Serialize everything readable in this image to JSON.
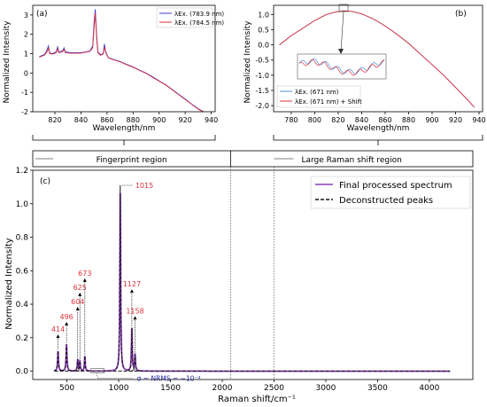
{
  "chart_data": [
    {
      "id": "a",
      "panel_label": "(a)",
      "type": "line",
      "xlabel": "Wavelength/nm",
      "ylabel": "Normalized Intensity",
      "xlim": [
        803,
        943
      ],
      "ylim": [
        -2,
        3.5
      ],
      "x_ticks": [
        820,
        840,
        860,
        880,
        900,
        920,
        940
      ],
      "y_ticks": [
        -2,
        -1,
        0,
        1,
        2,
        3
      ],
      "legend_position": "top-right",
      "series": [
        {
          "name": "λEx. (783.9 nm)",
          "color": "#3b3bd6",
          "points": [
            [
              808,
              0.85
            ],
            [
              812,
              0.95
            ],
            [
              814,
              1.2
            ],
            [
              815,
              1.4
            ],
            [
              816,
              1.05
            ],
            [
              818,
              1.0
            ],
            [
              821,
              1.1
            ],
            [
              822,
              1.35
            ],
            [
              823,
              1.1
            ],
            [
              826,
              1.15
            ],
            [
              827,
              1.3
            ],
            [
              828,
              1.1
            ],
            [
              832,
              1.05
            ],
            [
              836,
              1.05
            ],
            [
              840,
              1.05
            ],
            [
              844,
              1.1
            ],
            [
              847,
              1.15
            ],
            [
              849,
              1.4
            ],
            [
              850,
              2.6
            ],
            [
              851,
              3.3
            ],
            [
              852,
              2.0
            ],
            [
              853,
              1.1
            ],
            [
              855,
              0.95
            ],
            [
              857,
              1.0
            ],
            [
              858,
              1.5
            ],
            [
              859,
              1.1
            ],
            [
              861,
              0.8
            ],
            [
              865,
              0.7
            ],
            [
              870,
              0.6
            ],
            [
              875,
              0.45
            ],
            [
              880,
              0.32
            ],
            [
              885,
              0.15
            ],
            [
              890,
              0.0
            ],
            [
              895,
              -0.2
            ],
            [
              900,
              -0.4
            ],
            [
              905,
              -0.6
            ],
            [
              910,
              -0.85
            ],
            [
              915,
              -1.1
            ],
            [
              920,
              -1.35
            ],
            [
              925,
              -1.6
            ],
            [
              930,
              -1.85
            ],
            [
              934,
              -2.0
            ]
          ]
        },
        {
          "name": "λEx. (784.5 nm)",
          "color": "#e0303a",
          "points": [
            [
              808,
              0.82
            ],
            [
              812,
              0.92
            ],
            [
              814,
              1.1
            ],
            [
              815,
              1.3
            ],
            [
              816,
              1.0
            ],
            [
              818,
              0.98
            ],
            [
              821,
              1.05
            ],
            [
              822,
              1.25
            ],
            [
              823,
              1.05
            ],
            [
              826,
              1.1
            ],
            [
              827,
              1.22
            ],
            [
              828,
              1.05
            ],
            [
              832,
              1.02
            ],
            [
              836,
              1.02
            ],
            [
              840,
              1.03
            ],
            [
              844,
              1.08
            ],
            [
              847,
              1.12
            ],
            [
              849,
              1.3
            ],
            [
              850,
              2.3
            ],
            [
              851,
              3.1
            ],
            [
              852,
              1.8
            ],
            [
              853,
              1.05
            ],
            [
              855,
              0.92
            ],
            [
              857,
              0.98
            ],
            [
              858,
              1.35
            ],
            [
              859,
              1.05
            ],
            [
              861,
              0.78
            ],
            [
              865,
              0.68
            ],
            [
              870,
              0.58
            ],
            [
              875,
              0.43
            ],
            [
              880,
              0.3
            ],
            [
              885,
              0.13
            ],
            [
              890,
              -0.02
            ],
            [
              895,
              -0.22
            ],
            [
              900,
              -0.42
            ],
            [
              905,
              -0.62
            ],
            [
              910,
              -0.87
            ],
            [
              915,
              -1.12
            ],
            [
              920,
              -1.37
            ],
            [
              925,
              -1.62
            ],
            [
              930,
              -1.87
            ],
            [
              934,
              -2.02
            ]
          ]
        }
      ]
    },
    {
      "id": "b",
      "panel_label": "(b)",
      "type": "line",
      "xlabel": "Wavelength/nm",
      "ylabel": "Normalized Intensity",
      "xlim": [
        765,
        943
      ],
      "ylim": [
        -2.2,
        1.3
      ],
      "x_ticks": [
        780,
        800,
        820,
        840,
        860,
        880,
        900,
        920,
        940
      ],
      "y_ticks": [
        -2.0,
        -1.5,
        -1.0,
        -0.5,
        0.0,
        0.5,
        1.0
      ],
      "legend_position": "bottom-left",
      "series": [
        {
          "name": "λEx. (671 nm)",
          "color": "#4a90d9",
          "points": [
            [
              770,
              0.0
            ],
            [
              780,
              0.3
            ],
            [
              790,
              0.55
            ],
            [
              800,
              0.8
            ],
            [
              810,
              1.0
            ],
            [
              818,
              1.08
            ],
            [
              825,
              1.12
            ],
            [
              832,
              1.1
            ],
            [
              840,
              1.02
            ],
            [
              850,
              0.85
            ],
            [
              860,
              0.62
            ],
            [
              870,
              0.35
            ],
            [
              880,
              0.05
            ],
            [
              890,
              -0.3
            ],
            [
              900,
              -0.65
            ],
            [
              910,
              -1.0
            ],
            [
              920,
              -1.4
            ],
            [
              930,
              -1.8
            ],
            [
              936,
              -2.05
            ]
          ]
        },
        {
          "name": "λEx. (671 nm) + Shift",
          "color": "#e0303a",
          "points": [
            [
              770,
              0.0
            ],
            [
              780,
              0.3
            ],
            [
              790,
              0.55
            ],
            [
              800,
              0.8
            ],
            [
              810,
              1.0
            ],
            [
              818,
              1.08
            ],
            [
              825,
              1.12
            ],
            [
              832,
              1.1
            ],
            [
              840,
              1.02
            ],
            [
              850,
              0.85
            ],
            [
              860,
              0.62
            ],
            [
              870,
              0.35
            ],
            [
              880,
              0.05
            ],
            [
              890,
              -0.3
            ],
            [
              900,
              -0.65
            ],
            [
              910,
              -1.0
            ],
            [
              920,
              -1.4
            ],
            [
              930,
              -1.8
            ],
            [
              936,
              -2.05
            ]
          ]
        }
      ]
    },
    {
      "id": "c",
      "panel_label": "(c)",
      "type": "line",
      "xlabel": "Raman shift/cm⁻¹",
      "ylabel": "Normalized Intensity",
      "xlim": [
        170,
        4420
      ],
      "ylim": [
        -0.05,
        1.2
      ],
      "x_ticks": [
        500,
        1000,
        1500,
        2000,
        2500,
        3000,
        3500,
        4000
      ],
      "y_ticks": [
        0.0,
        0.2,
        0.4,
        0.6,
        0.8,
        1.0,
        1.2
      ],
      "legend_position": "top-right",
      "series": [
        {
          "name": "Final processed spectrum",
          "color": "#8a3fb5",
          "style": "solid"
        },
        {
          "name": "Deconstructed peaks",
          "color": "#111111",
          "style": "dashed"
        }
      ],
      "peaks": [
        {
          "x": 414,
          "height": 0.12,
          "width": 10,
          "label": "414",
          "label_y": 0.23
        },
        {
          "x": 496,
          "height": 0.16,
          "width": 10,
          "label": "496",
          "label_y": 0.305
        },
        {
          "x": 604,
          "height": 0.07,
          "width": 9,
          "label": "604",
          "label_y": 0.395
        },
        {
          "x": 625,
          "height": 0.06,
          "width": 9,
          "label": "625",
          "label_y": 0.48
        },
        {
          "x": 673,
          "height": 0.09,
          "width": 9,
          "label": "673",
          "label_y": 0.565
        },
        {
          "x": 1015,
          "height": 1.11,
          "width": 9,
          "label": "1015",
          "label_y": 1.11
        },
        {
          "x": 1127,
          "height": 0.26,
          "width": 9,
          "label": "1127",
          "label_y": 0.5
        },
        {
          "x": 1158,
          "height": 0.1,
          "width": 9,
          "label": "1158",
          "label_y": 0.34
        }
      ],
      "noise_annotation": "σ = NRMS = ~10⁻⁴",
      "region_labels": [
        "Fingerprint region",
        "Large Raman shift region"
      ],
      "region_boundaries": [
        2080,
        2500
      ]
    }
  ]
}
